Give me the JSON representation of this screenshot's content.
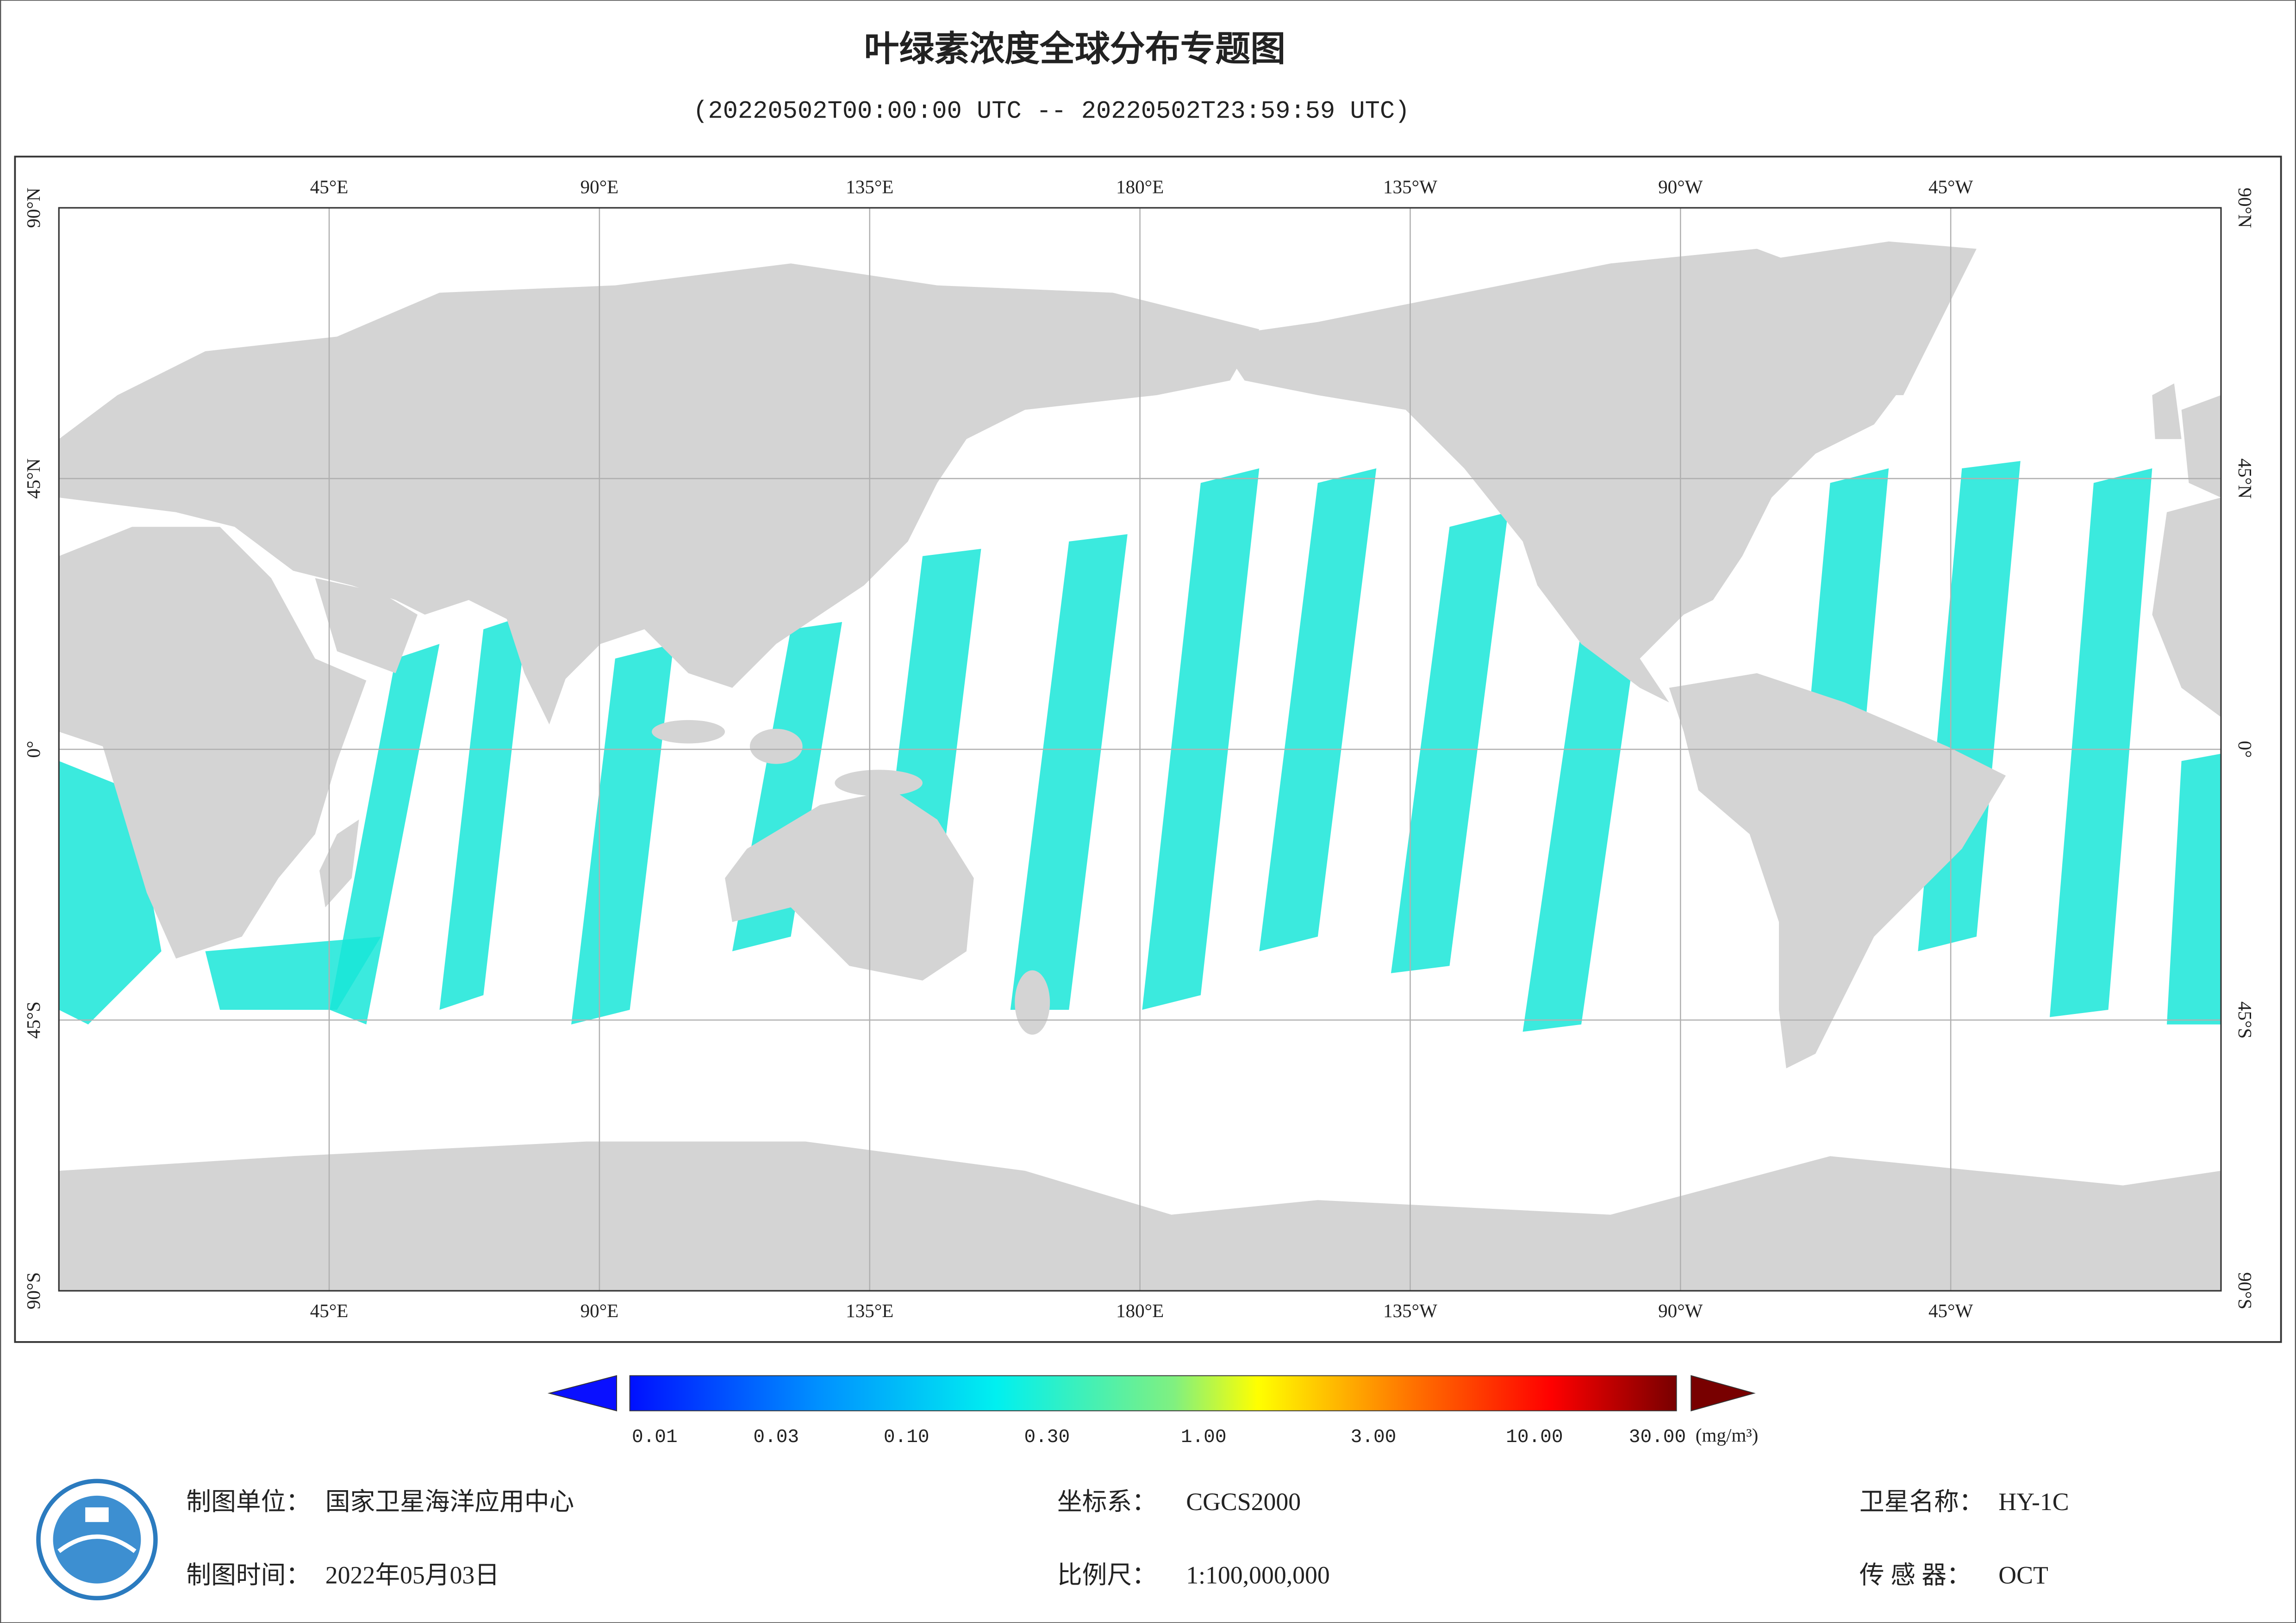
{
  "header": {
    "title": "叶绿素浓度全球分布专题图",
    "subtitle": "(20220502T00:00:00 UTC -- 20220502T23:59:59 UTC)"
  },
  "map": {
    "lon_labels": [
      "45°E",
      "90°E",
      "135°E",
      "180°E",
      "135°W",
      "90°W",
      "45°W"
    ],
    "lat_labels": [
      "90°N",
      "45°N",
      "0°",
      "45°S",
      "90°S"
    ]
  },
  "colorbar": {
    "labels": [
      "0.01",
      "0.03",
      "0.10",
      "0.30",
      "1.00",
      "3.00",
      "10.00",
      "30.00"
    ],
    "unit": "(mg/m³)"
  },
  "footer": {
    "unit_label": "制图单位：",
    "unit": "国家卫星海洋应用中心",
    "time_label": "制图时间：",
    "time": "2022年05月03日",
    "crs_label": "坐标系：",
    "crs": "CGCS2000",
    "scale_label": "比例尺：",
    "scale": "1:100,000,000",
    "satellite_label": "卫星名称：",
    "satellite": "HY-1C",
    "sensor_label": "传 感 器：",
    "sensor": "OCT"
  }
}
